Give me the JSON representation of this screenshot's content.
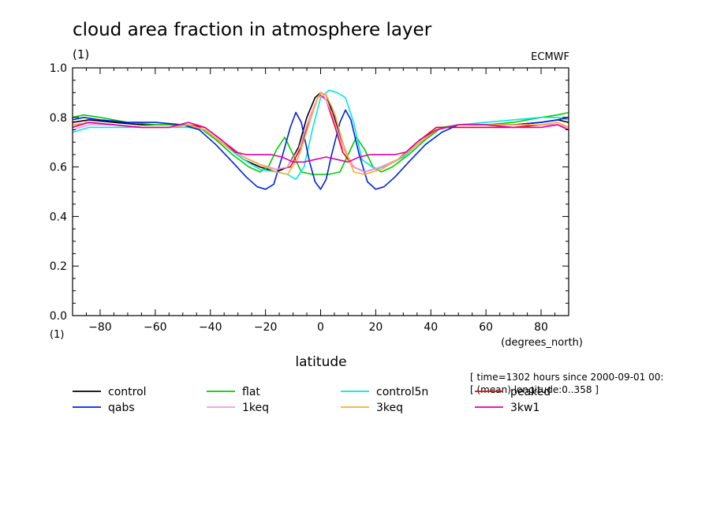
{
  "chart_data": {
    "type": "line",
    "title": "cloud area fraction in atmosphere layer",
    "yunits": "(1)",
    "source": "ECMWF",
    "xlabel": "latitude",
    "xunits": "(degrees_north)",
    "yunits_bottom": "(1)",
    "info_lines": [
      "[ time=1302 hours since 2000-09-01 00:",
      "[ (mean) longitude:0..358 ]"
    ],
    "xlim": [
      -90,
      90
    ],
    "ylim": [
      0,
      1
    ],
    "xticks": [
      -80,
      -60,
      -40,
      -20,
      0,
      20,
      40,
      60,
      80
    ],
    "yticks": [
      0.0,
      0.2,
      0.4,
      0.6,
      0.8,
      1.0
    ],
    "ytick_labels": [
      "0.0",
      "0.2",
      "0.4",
      "0.6",
      "0.8",
      "1.0"
    ],
    "grid": false,
    "legend_position": "bottom",
    "series": [
      {
        "name": "control",
        "color": "#000000",
        "points": [
          [
            -90,
            0.78
          ],
          [
            -84,
            0.79
          ],
          [
            -75,
            0.78
          ],
          [
            -65,
            0.77
          ],
          [
            -55,
            0.77
          ],
          [
            -48,
            0.77
          ],
          [
            -42,
            0.75
          ],
          [
            -35,
            0.69
          ],
          [
            -28,
            0.63
          ],
          [
            -22,
            0.6
          ],
          [
            -16,
            0.58
          ],
          [
            -12,
            0.6
          ],
          [
            -8,
            0.68
          ],
          [
            -5,
            0.8
          ],
          [
            -2,
            0.88
          ],
          [
            0,
            0.9
          ],
          [
            2,
            0.89
          ],
          [
            5,
            0.8
          ],
          [
            8,
            0.68
          ],
          [
            12,
            0.6
          ],
          [
            16,
            0.58
          ],
          [
            22,
            0.6
          ],
          [
            28,
            0.63
          ],
          [
            35,
            0.69
          ],
          [
            42,
            0.75
          ],
          [
            50,
            0.77
          ],
          [
            60,
            0.77
          ],
          [
            70,
            0.77
          ],
          [
            80,
            0.78
          ],
          [
            86,
            0.79
          ],
          [
            90,
            0.78
          ]
        ]
      },
      {
        "name": "flat",
        "color": "#00cc00",
        "points": [
          [
            -90,
            0.8
          ],
          [
            -86,
            0.81
          ],
          [
            -80,
            0.8
          ],
          [
            -70,
            0.78
          ],
          [
            -60,
            0.77
          ],
          [
            -50,
            0.77
          ],
          [
            -44,
            0.76
          ],
          [
            -38,
            0.71
          ],
          [
            -32,
            0.65
          ],
          [
            -26,
            0.6
          ],
          [
            -22,
            0.58
          ],
          [
            -19,
            0.6
          ],
          [
            -16,
            0.67
          ],
          [
            -13,
            0.72
          ],
          [
            -10,
            0.65
          ],
          [
            -7,
            0.58
          ],
          [
            -3,
            0.57
          ],
          [
            0,
            0.57
          ],
          [
            3,
            0.57
          ],
          [
            7,
            0.58
          ],
          [
            10,
            0.65
          ],
          [
            13,
            0.72
          ],
          [
            16,
            0.67
          ],
          [
            19,
            0.6
          ],
          [
            22,
            0.58
          ],
          [
            26,
            0.6
          ],
          [
            32,
            0.65
          ],
          [
            38,
            0.71
          ],
          [
            44,
            0.76
          ],
          [
            50,
            0.77
          ],
          [
            60,
            0.77
          ],
          [
            70,
            0.78
          ],
          [
            80,
            0.8
          ],
          [
            86,
            0.81
          ],
          [
            90,
            0.82
          ]
        ]
      },
      {
        "name": "control5n",
        "color": "#00e5e5",
        "points": [
          [
            -90,
            0.74
          ],
          [
            -84,
            0.76
          ],
          [
            -75,
            0.76
          ],
          [
            -65,
            0.76
          ],
          [
            -55,
            0.76
          ],
          [
            -48,
            0.76
          ],
          [
            -42,
            0.75
          ],
          [
            -35,
            0.69
          ],
          [
            -28,
            0.63
          ],
          [
            -22,
            0.59
          ],
          [
            -16,
            0.58
          ],
          [
            -12,
            0.57
          ],
          [
            -9,
            0.55
          ],
          [
            -6,
            0.6
          ],
          [
            -3,
            0.75
          ],
          [
            0,
            0.88
          ],
          [
            3,
            0.91
          ],
          [
            6,
            0.9
          ],
          [
            9,
            0.88
          ],
          [
            12,
            0.78
          ],
          [
            15,
            0.63
          ],
          [
            20,
            0.59
          ],
          [
            25,
            0.61
          ],
          [
            30,
            0.64
          ],
          [
            36,
            0.7
          ],
          [
            42,
            0.75
          ],
          [
            50,
            0.77
          ],
          [
            60,
            0.78
          ],
          [
            70,
            0.79
          ],
          [
            80,
            0.8
          ],
          [
            86,
            0.8
          ],
          [
            90,
            0.79
          ]
        ]
      },
      {
        "name": "peaked",
        "color": "#ee0000",
        "points": [
          [
            -90,
            0.76
          ],
          [
            -85,
            0.78
          ],
          [
            -75,
            0.77
          ],
          [
            -65,
            0.76
          ],
          [
            -55,
            0.76
          ],
          [
            -48,
            0.77
          ],
          [
            -42,
            0.76
          ],
          [
            -35,
            0.7
          ],
          [
            -28,
            0.64
          ],
          [
            -22,
            0.61
          ],
          [
            -16,
            0.59
          ],
          [
            -11,
            0.6
          ],
          [
            -7,
            0.68
          ],
          [
            -4,
            0.8
          ],
          [
            -1,
            0.88
          ],
          [
            0,
            0.89
          ],
          [
            2,
            0.87
          ],
          [
            5,
            0.77
          ],
          [
            8,
            0.66
          ],
          [
            12,
            0.6
          ],
          [
            16,
            0.58
          ],
          [
            22,
            0.6
          ],
          [
            28,
            0.63
          ],
          [
            35,
            0.7
          ],
          [
            42,
            0.76
          ],
          [
            50,
            0.76
          ],
          [
            60,
            0.76
          ],
          [
            70,
            0.76
          ],
          [
            80,
            0.77
          ],
          [
            86,
            0.77
          ],
          [
            90,
            0.75
          ]
        ]
      },
      {
        "name": "qabs",
        "color": "#0022dd",
        "points": [
          [
            -90,
            0.79
          ],
          [
            -86,
            0.8
          ],
          [
            -80,
            0.79
          ],
          [
            -70,
            0.78
          ],
          [
            -60,
            0.78
          ],
          [
            -50,
            0.77
          ],
          [
            -44,
            0.75
          ],
          [
            -38,
            0.69
          ],
          [
            -32,
            0.62
          ],
          [
            -27,
            0.56
          ],
          [
            -23,
            0.52
          ],
          [
            -20,
            0.51
          ],
          [
            -17,
            0.53
          ],
          [
            -14,
            0.64
          ],
          [
            -11,
            0.76
          ],
          [
            -9,
            0.82
          ],
          [
            -7,
            0.78
          ],
          [
            -4,
            0.62
          ],
          [
            -2,
            0.54
          ],
          [
            0,
            0.51
          ],
          [
            2,
            0.55
          ],
          [
            4,
            0.65
          ],
          [
            7,
            0.78
          ],
          [
            9,
            0.83
          ],
          [
            11,
            0.79
          ],
          [
            14,
            0.65
          ],
          [
            17,
            0.54
          ],
          [
            20,
            0.51
          ],
          [
            23,
            0.52
          ],
          [
            27,
            0.56
          ],
          [
            32,
            0.62
          ],
          [
            38,
            0.69
          ],
          [
            44,
            0.74
          ],
          [
            50,
            0.77
          ],
          [
            60,
            0.77
          ],
          [
            70,
            0.77
          ],
          [
            80,
            0.78
          ],
          [
            86,
            0.79
          ],
          [
            90,
            0.8
          ]
        ]
      },
      {
        "name": "1keq",
        "color": "#ee99ee",
        "points": [
          [
            -90,
            0.75
          ],
          [
            -84,
            0.77
          ],
          [
            -75,
            0.77
          ],
          [
            -65,
            0.76
          ],
          [
            -55,
            0.76
          ],
          [
            -48,
            0.77
          ],
          [
            -42,
            0.75
          ],
          [
            -35,
            0.69
          ],
          [
            -28,
            0.64
          ],
          [
            -22,
            0.61
          ],
          [
            -16,
            0.59
          ],
          [
            -12,
            0.6
          ],
          [
            -8,
            0.67
          ],
          [
            -4,
            0.8
          ],
          [
            -1,
            0.88
          ],
          [
            1,
            0.89
          ],
          [
            4,
            0.82
          ],
          [
            8,
            0.68
          ],
          [
            12,
            0.6
          ],
          [
            16,
            0.58
          ],
          [
            22,
            0.6
          ],
          [
            28,
            0.63
          ],
          [
            35,
            0.69
          ],
          [
            42,
            0.75
          ],
          [
            50,
            0.77
          ],
          [
            60,
            0.77
          ],
          [
            70,
            0.77
          ],
          [
            80,
            0.77
          ],
          [
            86,
            0.77
          ],
          [
            90,
            0.76
          ]
        ]
      },
      {
        "name": "3keq",
        "color": "#ffaa33",
        "points": [
          [
            -90,
            0.77
          ],
          [
            -84,
            0.78
          ],
          [
            -75,
            0.77
          ],
          [
            -65,
            0.76
          ],
          [
            -55,
            0.76
          ],
          [
            -48,
            0.77
          ],
          [
            -42,
            0.75
          ],
          [
            -35,
            0.69
          ],
          [
            -28,
            0.64
          ],
          [
            -22,
            0.61
          ],
          [
            -16,
            0.58
          ],
          [
            -12,
            0.57
          ],
          [
            -8,
            0.64
          ],
          [
            -4,
            0.78
          ],
          [
            -1,
            0.88
          ],
          [
            0,
            0.9
          ],
          [
            2,
            0.89
          ],
          [
            5,
            0.82
          ],
          [
            8,
            0.7
          ],
          [
            12,
            0.58
          ],
          [
            16,
            0.57
          ],
          [
            22,
            0.59
          ],
          [
            28,
            0.63
          ],
          [
            35,
            0.69
          ],
          [
            42,
            0.75
          ],
          [
            50,
            0.77
          ],
          [
            60,
            0.77
          ],
          [
            70,
            0.77
          ],
          [
            80,
            0.77
          ],
          [
            86,
            0.78
          ],
          [
            90,
            0.76
          ]
        ]
      },
      {
        "name": "3kw1",
        "color": "#dd00aa",
        "points": [
          [
            -90,
            0.76
          ],
          [
            -84,
            0.78
          ],
          [
            -75,
            0.77
          ],
          [
            -65,
            0.76
          ],
          [
            -55,
            0.76
          ],
          [
            -48,
            0.78
          ],
          [
            -42,
            0.76
          ],
          [
            -36,
            0.71
          ],
          [
            -31,
            0.66
          ],
          [
            -27,
            0.65
          ],
          [
            -22,
            0.65
          ],
          [
            -18,
            0.65
          ],
          [
            -14,
            0.64
          ],
          [
            -10,
            0.62
          ],
          [
            -6,
            0.62
          ],
          [
            -2,
            0.63
          ],
          [
            2,
            0.64
          ],
          [
            6,
            0.63
          ],
          [
            10,
            0.62
          ],
          [
            14,
            0.64
          ],
          [
            18,
            0.65
          ],
          [
            22,
            0.65
          ],
          [
            27,
            0.65
          ],
          [
            31,
            0.66
          ],
          [
            36,
            0.71
          ],
          [
            42,
            0.75
          ],
          [
            50,
            0.77
          ],
          [
            60,
            0.77
          ],
          [
            70,
            0.76
          ],
          [
            80,
            0.76
          ],
          [
            86,
            0.77
          ],
          [
            90,
            0.75
          ]
        ]
      }
    ]
  }
}
